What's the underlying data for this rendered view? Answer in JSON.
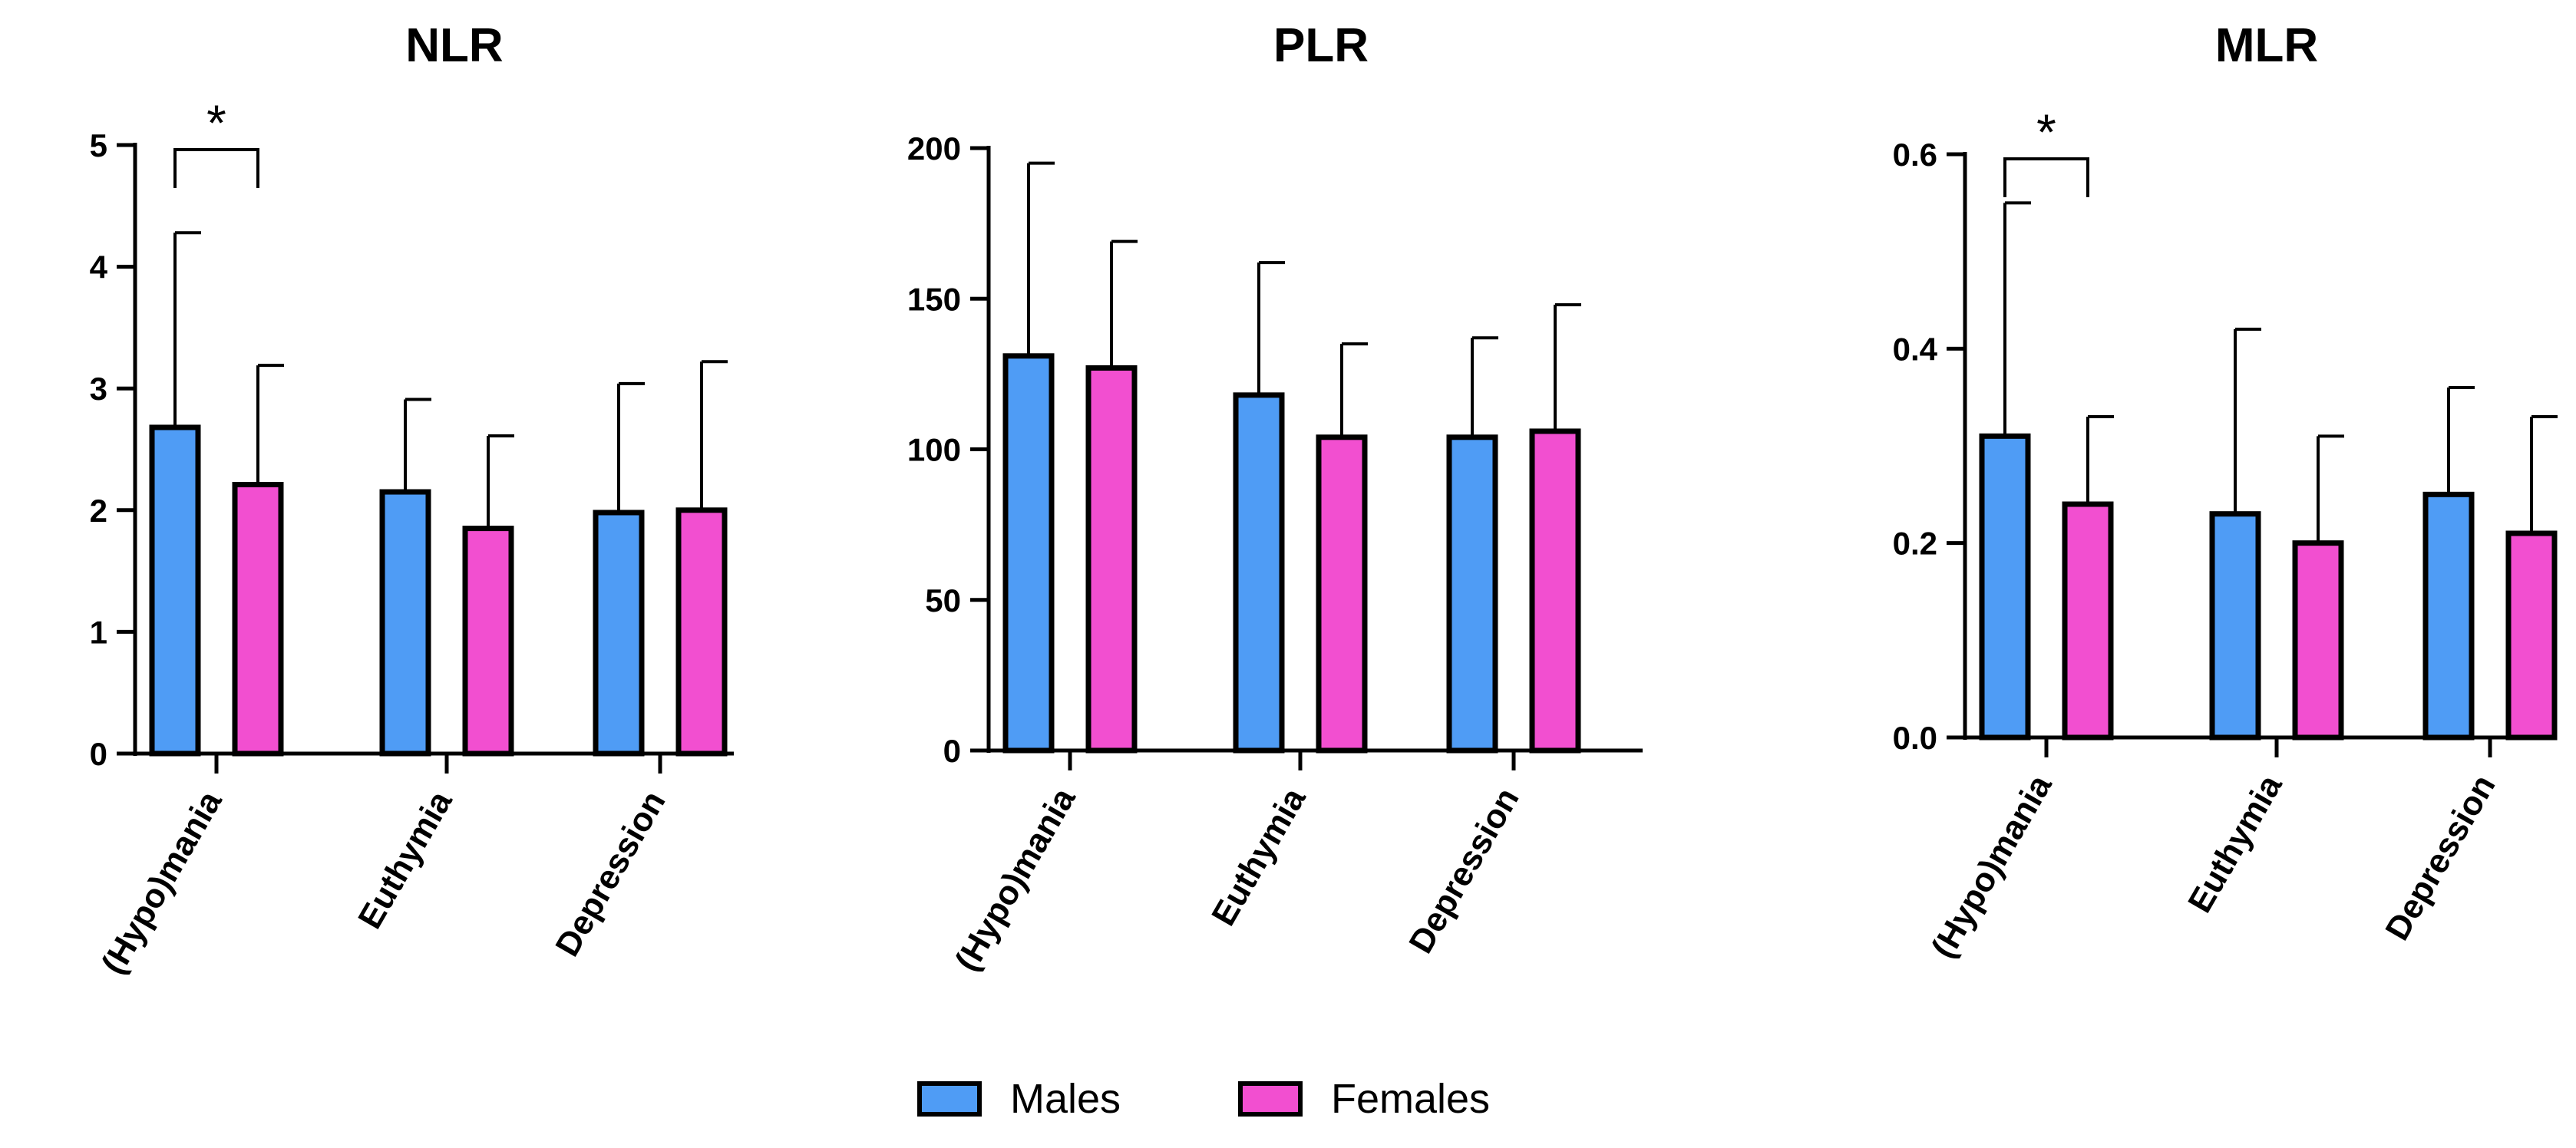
{
  "legend": {
    "males_label": "Males",
    "females_label": "Females"
  },
  "colors": {
    "males": "#4f9cf5",
    "females": "#f24fd0",
    "outline": "#000000"
  },
  "chart_data": [
    {
      "type": "bar",
      "title": "NLR",
      "categories": [
        "(Hypo)mania",
        "Euthymia",
        "Depression"
      ],
      "ylim": [
        0,
        5
      ],
      "yticks": [
        0,
        1,
        2,
        3,
        4,
        5
      ],
      "ytick_labels": [
        "0",
        "1",
        "2",
        "3",
        "4",
        "5"
      ],
      "xlabel": "",
      "ylabel": "",
      "grid": false,
      "series": [
        {
          "name": "Males",
          "values": [
            2.68,
            2.15,
            1.98
          ],
          "error_upper": [
            4.28,
            2.91,
            3.04
          ]
        },
        {
          "name": "Females",
          "values": [
            2.21,
            1.85,
            2.0
          ],
          "error_upper": [
            3.19,
            2.61,
            3.22
          ]
        }
      ],
      "annotations": [
        {
          "text": "*",
          "category": "(Hypo)mania"
        }
      ]
    },
    {
      "type": "bar",
      "title": "PLR",
      "categories": [
        "(Hypo)mania",
        "Euthymia",
        "Depression"
      ],
      "ylim": [
        0,
        200
      ],
      "yticks": [
        0,
        50,
        100,
        150,
        200
      ],
      "ytick_labels": [
        "0",
        "50",
        "100",
        "150",
        "200"
      ],
      "xlabel": "",
      "ylabel": "",
      "grid": false,
      "series": [
        {
          "name": "Males",
          "values": [
            131,
            118,
            104
          ],
          "error_upper": [
            195,
            162,
            137
          ]
        },
        {
          "name": "Females",
          "values": [
            127,
            104,
            106
          ],
          "error_upper": [
            169,
            135,
            148
          ]
        }
      ],
      "annotations": []
    },
    {
      "type": "bar",
      "title": "MLR",
      "categories": [
        "(Hypo)mania",
        "Euthymia",
        "Depression"
      ],
      "ylim": [
        0,
        0.6
      ],
      "yticks": [
        0,
        0.2,
        0.4,
        0.6
      ],
      "ytick_labels": [
        "0.0",
        "0.2",
        "0.4",
        "0.6"
      ],
      "xlabel": "",
      "ylabel": "",
      "grid": false,
      "series": [
        {
          "name": "Males",
          "values": [
            0.31,
            0.23,
            0.25
          ],
          "error_upper": [
            0.55,
            0.42,
            0.36
          ]
        },
        {
          "name": "Females",
          "values": [
            0.24,
            0.2,
            0.21
          ],
          "error_upper": [
            0.33,
            0.31,
            0.33
          ]
        }
      ],
      "annotations": [
        {
          "text": "*",
          "category": "(Hypo)mania"
        }
      ]
    }
  ]
}
